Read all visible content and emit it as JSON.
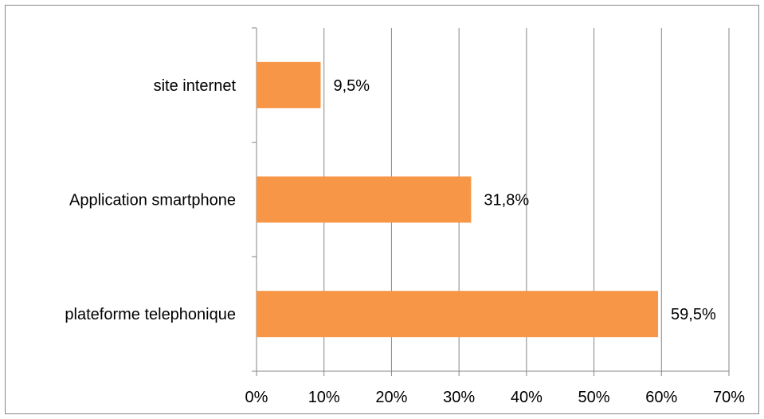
{
  "chart_data": {
    "type": "bar",
    "orientation": "horizontal",
    "title": "",
    "xlabel": "",
    "ylabel": "",
    "categories": [
      "site internet",
      "Application smartphone",
      "plateforme telephonique"
    ],
    "values": [
      9.5,
      31.8,
      59.5
    ],
    "value_labels": [
      "9,5%",
      "31,8%",
      "59,5%"
    ],
    "xlim": [
      0,
      70
    ],
    "xticks": [
      0,
      10,
      20,
      30,
      40,
      50,
      60,
      70
    ],
    "xtick_labels": [
      "0%",
      "10%",
      "20%",
      "30%",
      "40%",
      "50%",
      "60%",
      "70%"
    ],
    "grid": "vertical",
    "legend": "none",
    "bar_color": "#F79646",
    "grid_color": "#868686"
  }
}
